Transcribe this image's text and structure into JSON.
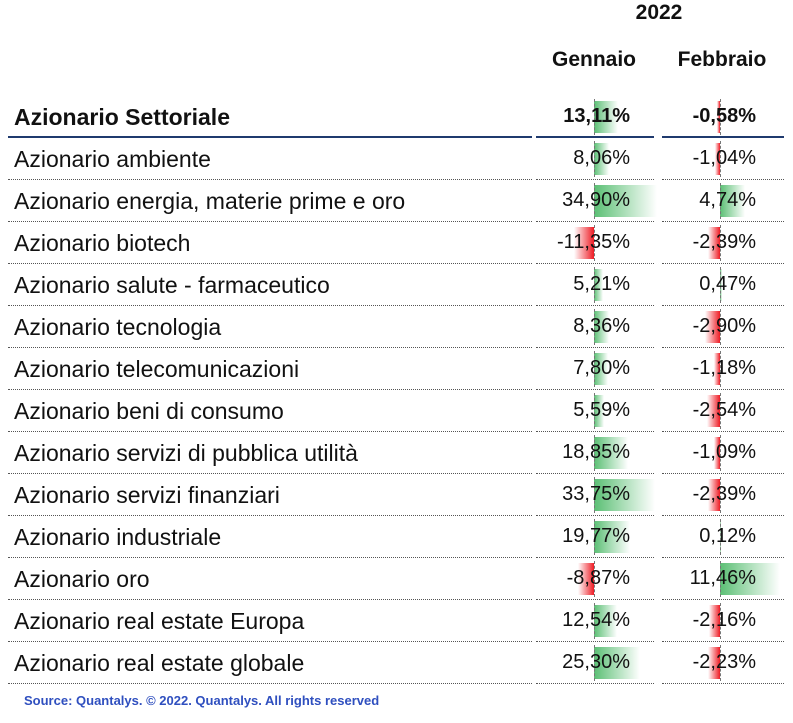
{
  "header": {
    "year": "2022",
    "col_gennaio": "Gennaio",
    "col_febbraio": "Febbraio"
  },
  "chart_data": {
    "type": "table",
    "columns": [
      "Gennaio",
      "Febbraio"
    ],
    "summary": {
      "label": "Azionario Settoriale",
      "gennaio": 13.11,
      "febbraio": -0.58,
      "gennaio_text": "13,11%",
      "febbraio_text": "-0,58%"
    },
    "rows": [
      {
        "label": "Azionario ambiente",
        "gennaio": 8.06,
        "febbraio": -1.04,
        "gennaio_text": "8,06%",
        "febbraio_text": "-1,04%"
      },
      {
        "label": "Azionario energia, materie prime e oro",
        "gennaio": 34.9,
        "febbraio": 4.74,
        "gennaio_text": "34,90%",
        "febbraio_text": "4,74%"
      },
      {
        "label": "Azionario biotech",
        "gennaio": -11.35,
        "febbraio": -2.39,
        "gennaio_text": "-11,35%",
        "febbraio_text": "-2,39%"
      },
      {
        "label": "Azionario salute - farmaceutico",
        "gennaio": 5.21,
        "febbraio": 0.47,
        "gennaio_text": "5,21%",
        "febbraio_text": "0,47%"
      },
      {
        "label": "Azionario tecnologia",
        "gennaio": 8.36,
        "febbraio": -2.9,
        "gennaio_text": "8,36%",
        "febbraio_text": "-2,90%"
      },
      {
        "label": "Azionario telecomunicazioni",
        "gennaio": 7.8,
        "febbraio": -1.18,
        "gennaio_text": "7,80%",
        "febbraio_text": "-1,18%"
      },
      {
        "label": "Azionario beni di consumo",
        "gennaio": 5.59,
        "febbraio": -2.54,
        "gennaio_text": "5,59%",
        "febbraio_text": "-2,54%"
      },
      {
        "label": "Azionario servizi di pubblica utilità",
        "gennaio": 18.85,
        "febbraio": -1.09,
        "gennaio_text": "18,85%",
        "febbraio_text": "-1,09%"
      },
      {
        "label": "Azionario servizi finanziari",
        "gennaio": 33.75,
        "febbraio": -2.39,
        "gennaio_text": "33,75%",
        "febbraio_text": "-2,39%"
      },
      {
        "label": "Azionario industriale",
        "gennaio": 19.77,
        "febbraio": 0.12,
        "gennaio_text": "19,77%",
        "febbraio_text": "0,12%"
      },
      {
        "label": "Azionario oro",
        "gennaio": -8.87,
        "febbraio": 11.46,
        "gennaio_text": "-8,87%",
        "febbraio_text": "11,46%"
      },
      {
        "label": "Azionario real estate Europa",
        "gennaio": 12.54,
        "febbraio": -2.16,
        "gennaio_text": "12,54%",
        "febbraio_text": "-2,16%"
      },
      {
        "label": "Azionario real estate globale",
        "gennaio": 25.3,
        "febbraio": -2.23,
        "gennaio_text": "25,30%",
        "febbraio_text": "-2,23%"
      }
    ],
    "colors": {
      "positive": "#5bbf74",
      "negative": "#ee1c25",
      "rule": "#1f3a6e",
      "source": "#2f4fbf"
    }
  },
  "footer": {
    "source": "Source: Quantalys. © 2022. Quantalys. All rights reserved"
  }
}
